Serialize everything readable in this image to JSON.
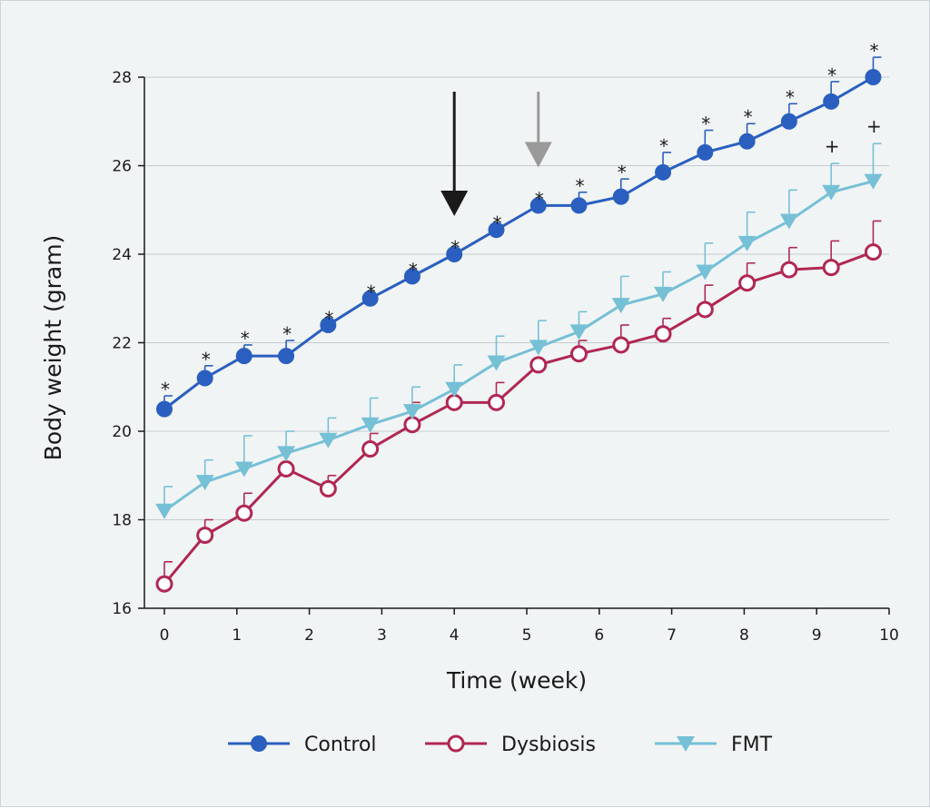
{
  "chart_data": {
    "type": "line",
    "xlabel": "Time (week)",
    "ylabel": "Body weight (gram)",
    "xlim": [
      0,
      10
    ],
    "ylim": [
      16,
      28
    ],
    "x_ticks": [
      "0",
      "1",
      "2",
      "3",
      "4",
      "5",
      "6",
      "7",
      "8",
      "9",
      "10"
    ],
    "y_ticks": [
      "16",
      "18",
      "20",
      "22",
      "24",
      "26",
      "28"
    ],
    "grid": "horizontal",
    "legend_position": "bottom",
    "x": [
      0.0,
      0.56,
      1.1,
      1.68,
      2.26,
      2.84,
      3.42,
      4.0,
      4.58,
      5.16,
      5.72,
      6.3,
      6.88,
      7.46,
      8.04,
      8.62,
      9.2,
      9.78
    ],
    "series": [
      {
        "name": "Control",
        "color": "#2a5fbf",
        "marker": "filled-circle",
        "values": [
          20.5,
          21.2,
          21.7,
          21.7,
          22.4,
          23.0,
          23.5,
          24.0,
          24.55,
          25.1,
          25.1,
          25.3,
          25.85,
          26.3,
          26.55,
          27.0,
          27.45,
          28.0
        ],
        "error": [
          0.3,
          0.28,
          0.25,
          0.35,
          0.0,
          0.0,
          0.0,
          0.0,
          0.0,
          0.0,
          0.3,
          0.4,
          0.45,
          0.5,
          0.4,
          0.4,
          0.45,
          0.45
        ],
        "annotations": [
          "*",
          "*",
          "*",
          "*",
          "*",
          "*",
          "*",
          "*",
          "*",
          "*",
          "*",
          "*",
          "*",
          "*",
          "*",
          "*",
          "*",
          "*"
        ]
      },
      {
        "name": "Dysbiosis",
        "color": "#b02852",
        "marker": "open-circle",
        "values": [
          16.55,
          17.65,
          18.15,
          19.15,
          18.7,
          19.6,
          20.15,
          20.65,
          20.65,
          21.5,
          21.75,
          21.95,
          22.2,
          22.75,
          23.35,
          23.65,
          23.7,
          24.05
        ],
        "error": [
          0.5,
          0.35,
          0.45,
          0.0,
          0.3,
          0.35,
          0.5,
          0.0,
          0.45,
          0.0,
          0.3,
          0.45,
          0.35,
          0.55,
          0.45,
          0.5,
          0.6,
          0.7
        ]
      },
      {
        "name": "FMT",
        "color": "#76c0d6",
        "marker": "triangle-down",
        "values": [
          18.2,
          18.85,
          19.15,
          19.5,
          19.8,
          20.15,
          20.45,
          20.95,
          21.55,
          21.9,
          22.25,
          22.85,
          23.1,
          23.6,
          24.25,
          24.75,
          25.4,
          25.65
        ],
        "error": [
          0.55,
          0.5,
          0.75,
          0.5,
          0.5,
          0.6,
          0.55,
          0.55,
          0.6,
          0.6,
          0.45,
          0.65,
          0.5,
          0.65,
          0.7,
          0.7,
          0.65,
          0.85
        ],
        "annotations": [
          "",
          "",
          "",
          "",
          "",
          "",
          "",
          "",
          "",
          "",
          "",
          "",
          "",
          "",
          "",
          "",
          "+",
          "+"
        ]
      }
    ],
    "arrows": [
      {
        "x": 4.0,
        "color": "#1a1a1a"
      },
      {
        "x": 5.16,
        "color": "#9a9a9a"
      }
    ]
  }
}
